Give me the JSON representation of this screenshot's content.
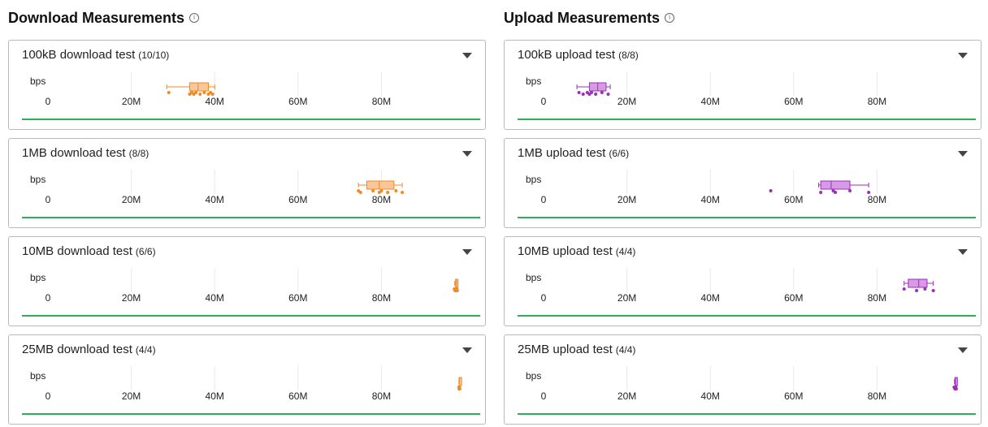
{
  "download": {
    "title": "Download Measurements",
    "info_icon": "info-icon",
    "color": "#f08a24",
    "fill": "#fbc698",
    "cards": [
      {
        "label": "100kB download test",
        "count": "(10/10)",
        "unit": "bps",
        "box": {
          "min": 28.5,
          "q1": 34,
          "median": 36,
          "q3": 38.5,
          "max": 40
        },
        "points": [
          29,
          34,
          34.5,
          35,
          35.5,
          36.5,
          37.5,
          38.5,
          39,
          39.5
        ]
      },
      {
        "label": "1MB download test",
        "count": "(8/8)",
        "unit": "bps",
        "box": {
          "min": 74.5,
          "q1": 76.5,
          "median": 79.5,
          "q3": 83,
          "max": 85
        },
        "points": [
          74.5,
          75,
          78,
          79.5,
          80,
          81.5,
          83.5,
          85
        ]
      },
      {
        "label": "10MB download test",
        "count": "(6/6)",
        "unit": "bps",
        "box": {
          "min": 97.6,
          "q1": 97.8,
          "median": 98.0,
          "q3": 98.2,
          "max": 98.3
        },
        "points": [
          97.5,
          97.7,
          97.9,
          98.0,
          98.1,
          98.2
        ]
      },
      {
        "label": "25MB download test",
        "count": "(4/4)",
        "unit": "bps",
        "box": {
          "min": 98.6,
          "q1": 98.65,
          "median": 98.7,
          "q3": 98.75,
          "max": 98.8
        },
        "points": [
          98.6,
          98.65,
          98.7,
          98.8
        ]
      }
    ]
  },
  "upload": {
    "title": "Upload Measurements",
    "info_icon": "info-icon",
    "color": "#9b2fb8",
    "fill": "#d79be6",
    "cards": [
      {
        "label": "100kB upload test",
        "count": "(8/8)",
        "unit": "bps",
        "box": {
          "min": 8,
          "q1": 11,
          "median": 13,
          "q3": 15,
          "max": 16
        },
        "points": [
          8.5,
          9.5,
          10.5,
          11,
          11.5,
          12.5,
          14,
          15.5
        ]
      },
      {
        "label": "1MB upload test",
        "count": "(6/6)",
        "unit": "bps",
        "box": {
          "min": 66,
          "q1": 66.5,
          "median": 69,
          "q3": 73.5,
          "max": 78
        },
        "points": [
          54.5,
          66.5,
          69.5,
          70,
          73.5,
          78
        ]
      },
      {
        "label": "10MB upload test",
        "count": "(4/4)",
        "unit": "bps",
        "box": {
          "min": 86.5,
          "q1": 87.5,
          "median": 90,
          "q3": 92,
          "max": 93.5
        },
        "points": [
          86.5,
          89.5,
          91.5,
          93.5
        ]
      },
      {
        "label": "25MB upload test",
        "count": "(4/4)",
        "unit": "bps",
        "box": {
          "min": 98.6,
          "q1": 98.7,
          "median": 98.8,
          "q3": 98.9,
          "max": 99.0
        },
        "points": [
          98.5,
          98.7,
          98.9,
          99.0
        ]
      }
    ]
  },
  "axis": {
    "ticks": [
      0,
      20,
      40,
      60,
      80
    ],
    "tick_labels": [
      "0",
      "20M",
      "40M",
      "60M",
      "80M"
    ],
    "unit": "bps",
    "range": [
      0,
      100
    ]
  },
  "colors": {
    "grid": "#e8e8e8",
    "baseline": "#2ead5a"
  }
}
